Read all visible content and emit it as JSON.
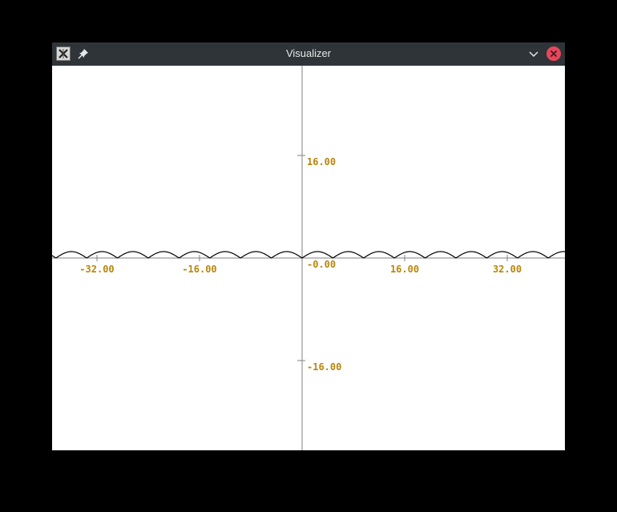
{
  "window": {
    "title": "Visualizer",
    "app_icon": "x-app-icon",
    "buttons": [
      "pin-icon",
      "minimize-chevron-icon",
      "close-icon"
    ]
  },
  "colors": {
    "background": "#ffffff",
    "axis": "#808080",
    "curve": "#000000",
    "tick_label": "#b8860b",
    "titlebar": "#2f3438",
    "close": "#e7475a"
  },
  "chart_data": {
    "type": "line",
    "title": "",
    "xlabel": "",
    "ylabel": "",
    "xlim": [
      -39.0,
      41.0
    ],
    "ylim": [
      -30.0,
      30.0
    ],
    "grid": false,
    "x_ticks": [
      {
        "value": -32,
        "label": "-32.00"
      },
      {
        "value": -16,
        "label": "-16.00"
      },
      {
        "value": 0,
        "label": "-0.00"
      },
      {
        "value": 16,
        "label": "16.00"
      },
      {
        "value": 32,
        "label": "32.00"
      }
    ],
    "y_ticks": [
      {
        "value": 16,
        "label": "16.00"
      },
      {
        "value": -16,
        "label": "-16.00"
      }
    ],
    "series": [
      {
        "function": "abs(sin(x*pi/4.8))",
        "x": [
          -39,
          -36,
          -33,
          -30,
          -27,
          -24,
          -21,
          -18,
          -15,
          -12,
          -9,
          -6,
          -3,
          0,
          3,
          6,
          9,
          12,
          15,
          18,
          21,
          24,
          27,
          30,
          33,
          36,
          39
        ],
        "y": [
          0.95,
          0.71,
          0.38,
          0.92,
          0.0,
          0.92,
          0.38,
          0.71,
          0.92,
          0.0,
          0.92,
          0.38,
          0.71,
          0.0,
          0.71,
          0.92,
          0.38,
          0.0,
          0.92,
          0.71,
          0.38,
          0.92,
          0.0,
          0.92,
          0.38,
          0.71,
          0.95
        ]
      }
    ]
  }
}
